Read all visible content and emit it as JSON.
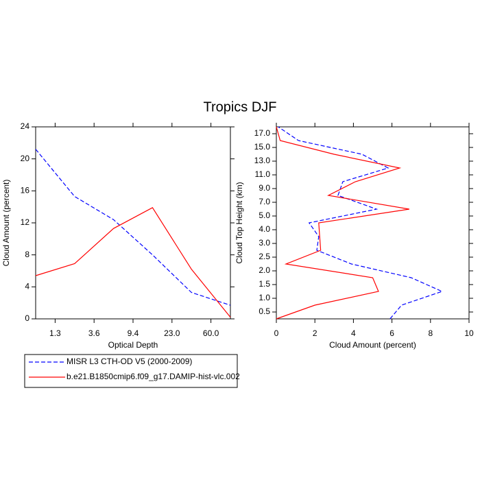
{
  "title": "Tropics DJF",
  "chart_data": [
    {
      "type": "line",
      "orient": "vertical",
      "xlabel": "Optical Depth",
      "ylabel": "Cloud Amount (percent)",
      "x": [
        0,
        1,
        2,
        3,
        4,
        5
      ],
      "xlim": [
        0,
        5
      ],
      "xticks": [
        {
          "value": 0.5,
          "label": "1.3"
        },
        {
          "value": 1.5,
          "label": "3.6"
        },
        {
          "value": 2.5,
          "label": "9.4"
        },
        {
          "value": 3.5,
          "label": "23.0"
        },
        {
          "value": 4.5,
          "label": "60.0"
        }
      ],
      "ylim": [
        0,
        24
      ],
      "yticks": [
        0,
        4,
        8,
        12,
        16,
        20,
        24
      ],
      "series": [
        {
          "name": "MISR L3 CTH-OD V5 (2000-2009)",
          "color": "#0000ff",
          "dash": true,
          "values": [
            21.2,
            15.3,
            12.4,
            8.0,
            3.3,
            1.7
          ]
        },
        {
          "name": "b.e21.B1850cmip6.f09_g17.DAMIP-hist-vlc.002",
          "color": "#ff0000",
          "dash": false,
          "values": [
            5.4,
            6.9,
            11.3,
            13.9,
            6.2,
            0.2
          ]
        }
      ]
    },
    {
      "type": "line",
      "orient": "horizontal",
      "xlabel": "Cloud Amount (percent)",
      "ylabel": "Cloud Top Height (km)",
      "y": [
        0,
        1,
        2,
        3,
        4,
        5,
        6,
        7,
        8,
        9,
        10,
        11,
        12,
        13,
        14
      ],
      "ylim": [
        0,
        14
      ],
      "yticks": [
        {
          "value": 0.5,
          "label": "0.5"
        },
        {
          "value": 1.5,
          "label": "1.0"
        },
        {
          "value": 2.5,
          "label": "1.5"
        },
        {
          "value": 3.5,
          "label": "2.0"
        },
        {
          "value": 4.5,
          "label": "2.5"
        },
        {
          "value": 5.5,
          "label": "3.0"
        },
        {
          "value": 6.5,
          "label": "4.0"
        },
        {
          "value": 7.5,
          "label": "5.0"
        },
        {
          "value": 8.5,
          "label": "7.0"
        },
        {
          "value": 9.5,
          "label": "9.0"
        },
        {
          "value": 10.5,
          "label": "11.0"
        },
        {
          "value": 11.5,
          "label": "13.0"
        },
        {
          "value": 12.5,
          "label": "15.0"
        },
        {
          "value": 13.5,
          "label": "17.0"
        }
      ],
      "xlim": [
        0,
        10
      ],
      "xticks": [
        0,
        2,
        4,
        6,
        8,
        10
      ],
      "series": [
        {
          "color": "#0000ff",
          "dash": true,
          "values": [
            5.9,
            6.5,
            8.6,
            7.0,
            3.9,
            2.1,
            2.2,
            1.7,
            5.2,
            3.2,
            3.45,
            5.8,
            4.45,
            1.15,
            0.1
          ]
        },
        {
          "color": "#ff0000",
          "dash": false,
          "values": [
            0,
            2.0,
            5.3,
            5.0,
            0.5,
            2.3,
            2.25,
            2.2,
            6.9,
            2.7,
            4.1,
            6.4,
            3.0,
            0.2,
            0
          ]
        }
      ]
    }
  ]
}
